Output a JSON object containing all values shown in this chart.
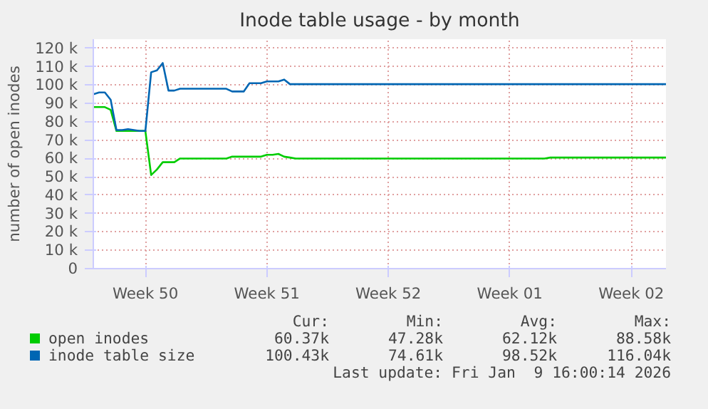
{
  "chart_data": {
    "type": "line",
    "title": "Inode table usage - by month",
    "ylabel": "number of open inodes",
    "categories": [
      null,
      null,
      null,
      null,
      null,
      null,
      null,
      null,
      null,
      "Week 50",
      null,
      null,
      null,
      null,
      null,
      null,
      null,
      null,
      null,
      null,
      null,
      null,
      null,
      null,
      null,
      null,
      null,
      null,
      null,
      null,
      "Week 51",
      null,
      null,
      null,
      null,
      null,
      null,
      null,
      null,
      null,
      null,
      null,
      null,
      null,
      null,
      null,
      null,
      null,
      null,
      null,
      null,
      "Week 52",
      null,
      null,
      null,
      null,
      null,
      null,
      null,
      null,
      null,
      null,
      null,
      null,
      null,
      null,
      null,
      null,
      null,
      null,
      null,
      null,
      "Week 01",
      null,
      null,
      null,
      null,
      null,
      null,
      null,
      null,
      null,
      null,
      null,
      null,
      null,
      null,
      null,
      null,
      null,
      null,
      null,
      null,
      "Week 02",
      null,
      null,
      null,
      null,
      null,
      null
    ],
    "ylim": [
      0,
      125
    ],
    "yticks": [
      {
        "value": 0,
        "label": "0"
      },
      {
        "value": 10,
        "label": "10 k"
      },
      {
        "value": 20,
        "label": "20 k"
      },
      {
        "value": 30,
        "label": "30 k"
      },
      {
        "value": 40,
        "label": "40 k"
      },
      {
        "value": 50,
        "label": "50 k"
      },
      {
        "value": 60,
        "label": "60 k"
      },
      {
        "value": 70,
        "label": "70 k"
      },
      {
        "value": 80,
        "label": "80 k"
      },
      {
        "value": 90,
        "label": "90 k"
      },
      {
        "value": 100,
        "label": "100 k"
      },
      {
        "value": 110,
        "label": "110 k"
      },
      {
        "value": 120,
        "label": "120 k"
      }
    ],
    "grid": true,
    "legend": "bottom left",
    "line_style": "solid",
    "series": [
      {
        "name": "open inodes",
        "color": "#00cc00",
        "values": [
          88,
          88,
          88,
          86.5,
          75,
          75,
          75,
          75,
          75,
          75,
          51,
          54,
          58,
          58,
          58,
          60,
          60,
          60,
          60,
          60,
          60,
          60,
          60,
          60,
          61,
          61,
          61,
          61,
          61,
          61,
          62,
          62,
          62.5,
          61,
          60.5,
          60,
          60,
          60,
          60,
          60,
          60,
          60,
          60,
          60,
          60,
          60,
          60,
          60,
          60,
          60,
          60,
          60,
          60,
          60,
          60,
          60,
          60,
          60,
          60,
          60,
          60,
          60,
          60,
          60,
          60,
          60,
          60,
          60,
          60,
          60,
          60,
          60,
          60,
          60,
          60,
          60,
          60,
          60,
          60,
          60.5,
          60.5,
          60.5,
          60.5,
          60.5,
          60.5,
          60.5,
          60.5,
          60.5,
          60.5,
          60.5,
          60.5,
          60.5,
          60.5,
          60.5,
          60.5,
          60.5,
          60.5,
          60.5,
          60.5,
          60.5
        ]
      },
      {
        "name": "inode table size",
        "color": "#0066b3",
        "values": [
          95,
          96,
          96,
          92,
          75.5,
          75.5,
          76,
          75.5,
          75,
          75,
          107,
          108,
          112,
          97,
          97,
          98,
          98,
          98,
          98,
          98,
          98,
          98,
          98,
          98,
          96.5,
          96.5,
          96.5,
          101,
          101,
          101,
          102,
          102,
          102,
          103,
          100.5,
          100.5,
          100.5,
          100.5,
          100.5,
          100.5,
          100.5,
          100.5,
          100.5,
          100.5,
          100.5,
          100.5,
          100.5,
          100.5,
          100.5,
          100.5,
          100.5,
          100.5,
          100.5,
          100.5,
          100.5,
          100.5,
          100.5,
          100.5,
          100.5,
          100.5,
          100.5,
          100.5,
          100.5,
          100.5,
          100.5,
          100.5,
          100.5,
          100.5,
          100.5,
          100.5,
          100.5,
          100.5,
          100.5,
          100.5,
          100.5,
          100.5,
          100.5,
          100.5,
          100.5,
          100.5,
          100.5,
          100.5,
          100.5,
          100.5,
          100.5,
          100.5,
          100.5,
          100.5,
          100.5,
          100.5,
          100.5,
          100.5,
          100.5,
          100.5,
          100.5,
          100.5,
          100.5,
          100.5,
          100.5,
          100.5
        ]
      }
    ],
    "annotations": [
      "Cur:",
      "Min:",
      "Avg:",
      "Max:",
      "60.37k",
      "47.28k",
      "62.12k",
      "88.58k",
      "100.43k",
      "74.61k",
      "98.52k",
      "116.04k",
      "Last update: Fri Jan  9 16:00:14 2026"
    ]
  }
}
